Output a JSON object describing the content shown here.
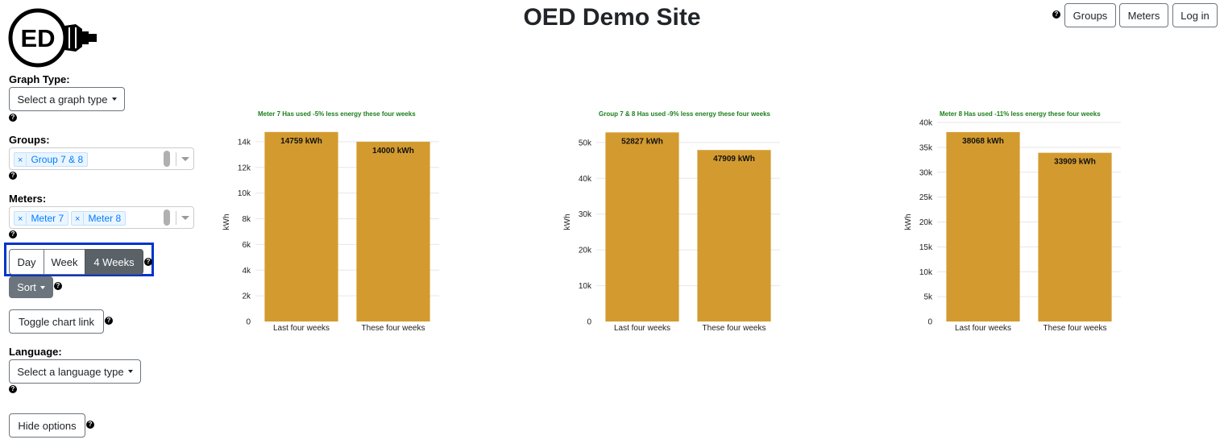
{
  "header": {
    "title": "OED Demo Site"
  },
  "nav": {
    "groups_label": "Groups",
    "meters_label": "Meters",
    "login_label": "Log in"
  },
  "help_glyph": "?",
  "sidebar": {
    "graph_type_label": "Graph Type:",
    "graph_type_placeholder": "Select a graph type",
    "groups_label": "Groups:",
    "groups_selected": [
      "Group 7 & 8"
    ],
    "meters_label": "Meters:",
    "meters_selected": [
      "Meter 7",
      "Meter 8"
    ],
    "remove_glyph": "×",
    "time_intervals": [
      "Day",
      "Week",
      "4 Weeks"
    ],
    "active_interval": "4 Weeks",
    "sort_label": "Sort",
    "toggle_chart_link_label": "Toggle chart link",
    "language_label": "Language:",
    "language_placeholder": "Select a language type",
    "hide_options_label": "Hide options"
  },
  "colors": {
    "bar": "#d39b2f",
    "title": "#1a7f1a",
    "highlight": "#0033cc"
  },
  "chart_data": [
    {
      "type": "bar",
      "title": "Meter 7 Has used -5% less energy these four weeks",
      "categories": [
        "Last four weeks",
        "These four weeks"
      ],
      "values": [
        14759,
        14000
      ],
      "value_labels": [
        "14759 kWh",
        "14000 kWh"
      ],
      "ylabel": "kWh",
      "yticks": [
        0,
        2000,
        4000,
        6000,
        8000,
        10000,
        12000,
        14000
      ],
      "ytick_labels": [
        "0",
        "2k",
        "4k",
        "6k",
        "8k",
        "10k",
        "12k",
        "14k"
      ],
      "ylim": [
        0,
        15500
      ],
      "grid": true
    },
    {
      "type": "bar",
      "title": "Group 7 & 8 Has used -9% less energy these four weeks",
      "categories": [
        "Last four weeks",
        "These four weeks"
      ],
      "values": [
        52827,
        47909
      ],
      "value_labels": [
        "52827 kWh",
        "47909 kWh"
      ],
      "ylabel": "kWh",
      "yticks": [
        0,
        10000,
        20000,
        30000,
        40000,
        50000
      ],
      "ytick_labels": [
        "0",
        "10k",
        "20k",
        "30k",
        "40k",
        "50k"
      ],
      "ylim": [
        0,
        55600
      ],
      "grid": true
    },
    {
      "type": "bar",
      "title": "Meter 8 Has used -11% less energy these four weeks",
      "categories": [
        "Last four weeks",
        "These four weeks"
      ],
      "values": [
        38068,
        33909
      ],
      "value_labels": [
        "38068 kWh",
        "33909 kWh"
      ],
      "ylabel": "kWh",
      "yticks": [
        0,
        5000,
        10000,
        15000,
        20000,
        25000,
        30000,
        35000,
        40000
      ],
      "ytick_labels": [
        "0",
        "5k",
        "10k",
        "15k",
        "20k",
        "25k",
        "30k",
        "35k",
        "40k"
      ],
      "ylim": [
        0,
        40000
      ],
      "grid": true
    }
  ]
}
